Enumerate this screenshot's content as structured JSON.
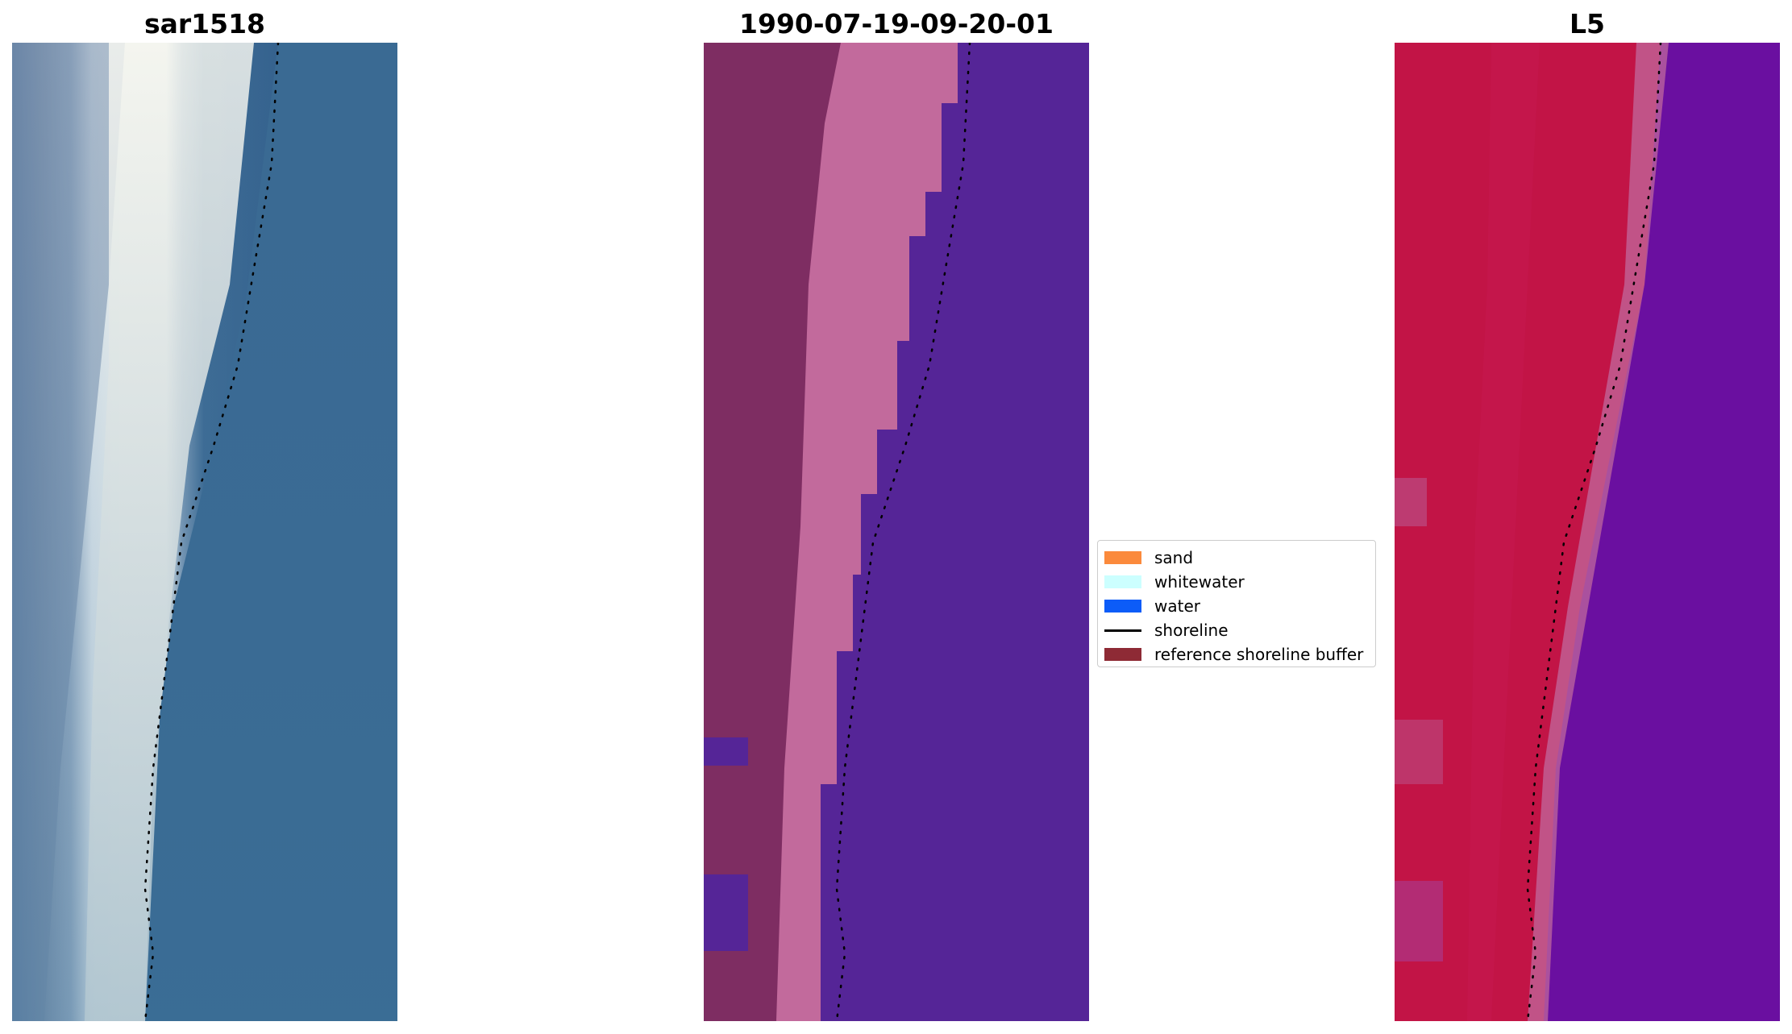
{
  "panels": [
    {
      "title": "sar1518"
    },
    {
      "title": "1990-07-19-09-20-01"
    },
    {
      "title": "L5"
    }
  ],
  "legend": {
    "items": [
      {
        "label": "sand",
        "color": "#fb8a3c",
        "kind": "patch"
      },
      {
        "label": "whitewater",
        "color": "#ccffff",
        "kind": "patch"
      },
      {
        "label": "water",
        "color": "#0c5cf8",
        "kind": "patch"
      },
      {
        "label": "shoreline",
        "color": "#000000",
        "kind": "line"
      },
      {
        "label": "reference shoreline buffer",
        "color": "#8e2a35",
        "kind": "patch"
      }
    ]
  },
  "colors": {
    "rgb_ocean": "#3a6a93",
    "rgb_foam": "#f2f5f1",
    "rgb_land": "#7d93ae",
    "classified_land": "#7e2d62",
    "classified_wet": "#c26a9c",
    "classified_water": "#552597",
    "index_land": "#c21446",
    "index_water": "#6a0fa0",
    "shoreline_dots": "#000000"
  }
}
